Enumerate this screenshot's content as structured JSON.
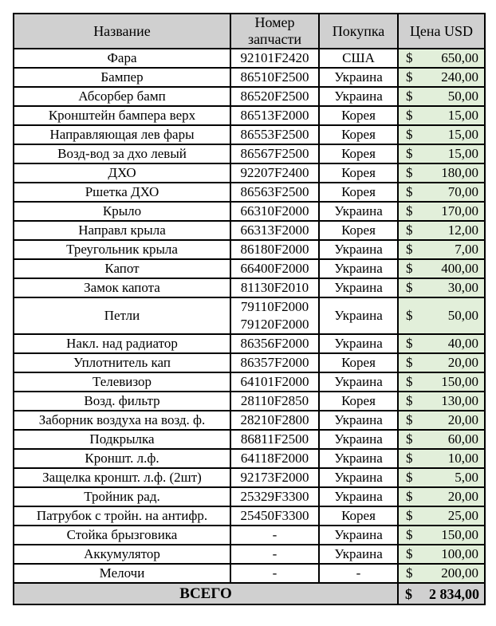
{
  "document": {
    "colors": {
      "header_bg": "#D0D0D0",
      "total_row_bg": "#D0D0D0",
      "price_column_bg": "#E2EFDA",
      "border": "#000000",
      "page_bg": "#FFFFFF"
    },
    "table": {
      "headers": [
        "Название",
        "Номер запчасти",
        "Покупка",
        "Цена USD"
      ],
      "currency_symbol": "$",
      "rows": [
        {
          "name": "Фара",
          "part_number": "92101F2420",
          "purchase": "США",
          "price": "650,00"
        },
        {
          "name": "Бампер",
          "part_number": "86510F2500",
          "purchase": "Украина",
          "price": "240,00"
        },
        {
          "name": "Абсорбер бамп",
          "part_number": "86520F2500",
          "purchase": "Украина",
          "price": "50,00"
        },
        {
          "name": "Кронштейн бампера верх",
          "part_number": "86513F2000",
          "purchase": "Корея",
          "price": "15,00"
        },
        {
          "name": "Направляющая лев фары",
          "part_number": "86553F2500",
          "purchase": "Корея",
          "price": "15,00"
        },
        {
          "name": "Возд-вод за дхо левый",
          "part_number": "86567F2500",
          "purchase": "Корея",
          "price": "15,00"
        },
        {
          "name": "ДХО",
          "part_number": "92207F2400",
          "purchase": "Корея",
          "price": "180,00"
        },
        {
          "name": "Ршетка ДХО",
          "part_number": "86563F2500",
          "purchase": "Корея",
          "price": "70,00"
        },
        {
          "name": "Крыло",
          "part_number": "66310F2000",
          "purchase": "Украина",
          "price": "170,00"
        },
        {
          "name": "Направл крыла",
          "part_number": "66313F2000",
          "purchase": "Корея",
          "price": "12,00"
        },
        {
          "name": "Треугольник крыла",
          "part_number": "86180F2000",
          "purchase": "Украина",
          "price": "7,00"
        },
        {
          "name": "Капот",
          "part_number": "66400F2000",
          "purchase": "Украина",
          "price": "400,00"
        },
        {
          "name": "Замок капота",
          "part_number": "81130F2010",
          "purchase": "Украина",
          "price": "30,00"
        },
        {
          "name": "Петли",
          "part_number": "79110F2000\n79120F2000",
          "purchase": "Украина",
          "price": "50,00"
        },
        {
          "name": "Накл. над радиатор",
          "part_number": "86356F2000",
          "purchase": "Украина",
          "price": "40,00"
        },
        {
          "name": "Уплотнитель кап",
          "part_number": "86357F2000",
          "purchase": "Корея",
          "price": "20,00"
        },
        {
          "name": "Телевизор",
          "part_number": "64101F2000",
          "purchase": "Украина",
          "price": "150,00"
        },
        {
          "name": "Возд. фильтр",
          "part_number": "28110F2850",
          "purchase": "Корея",
          "price": "130,00"
        },
        {
          "name": "Заборник воздуха на возд. ф.",
          "part_number": "28210F2800",
          "purchase": "Украина",
          "price": "20,00"
        },
        {
          "name": "Подкрылка",
          "part_number": "86811F2500",
          "purchase": "Украина",
          "price": "60,00"
        },
        {
          "name": "Кроншт. л.ф.",
          "part_number": "64118F2000",
          "purchase": "Украина",
          "price": "10,00"
        },
        {
          "name": "Защелка кроншт. л.ф. (2шт)",
          "part_number": "92173F2000",
          "purchase": "Украина",
          "price": "5,00"
        },
        {
          "name": "Тройник рад.",
          "part_number": "25329F3300",
          "purchase": "Украина",
          "price": "20,00"
        },
        {
          "name": "Патрубок с тройн. на антифр.",
          "part_number": "25450F3300",
          "purchase": "Корея",
          "price": "25,00"
        },
        {
          "name": "Стойка брызговика",
          "part_number": "-",
          "purchase": "Украина",
          "price": "150,00"
        },
        {
          "name": "Аккумулятор",
          "part_number": "-",
          "purchase": "Украина",
          "price": "100,00"
        },
        {
          "name": "Мелочи",
          "part_number": "-",
          "purchase": "-",
          "price": "200,00"
        }
      ],
      "footer": {
        "label": "ВСЕГО",
        "total": "2 834,00"
      }
    }
  }
}
